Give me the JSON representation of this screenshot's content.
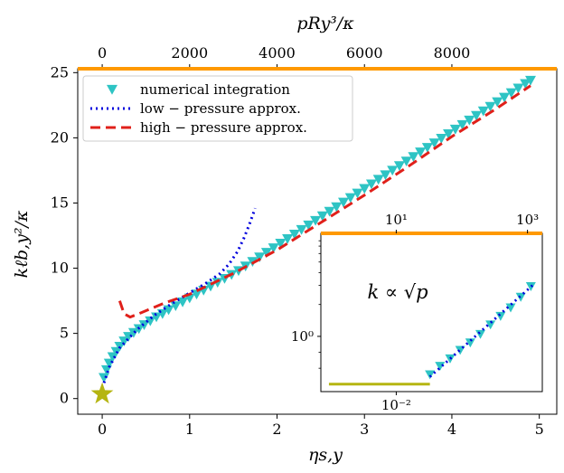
{
  "chart_data": [
    {
      "type": "scatter",
      "xlabel": "ηs,y",
      "ylabel": "kℓb,y²/κ",
      "top_xlabel": "pRy³/κ",
      "xlim": [
        -0.28,
        5.2
      ],
      "ylim": [
        -1.2,
        25.3
      ],
      "xticks": [
        "0",
        "1",
        "2",
        "3",
        "4",
        "5"
      ],
      "yticks": [
        "0",
        "5",
        "10",
        "15",
        "20",
        "25"
      ],
      "top_xticks": [
        "0",
        "2000",
        "4000",
        "6000",
        "8000"
      ],
      "top_x_values": [
        0,
        2000,
        4000,
        6000,
        8000
      ],
      "top_x_at_eta": [
        0.0,
        1.0,
        2.0,
        3.0,
        4.0
      ],
      "legend_position": "top-left",
      "grid": false,
      "highlight_line_color": "#ff9900",
      "star_color": "#b5b512",
      "star_point": {
        "x": 0.0,
        "y": 0.35
      },
      "series": [
        {
          "name": "numerical integration",
          "style": "marker-triangle-down",
          "color": "#2ec4c4",
          "points": [
            [
              0.02,
              1.6
            ],
            [
              0.05,
              2.2
            ],
            [
              0.08,
              2.7
            ],
            [
              0.12,
              3.2
            ],
            [
              0.16,
              3.6
            ],
            [
              0.2,
              4.0
            ],
            [
              0.25,
              4.4
            ],
            [
              0.3,
              4.75
            ],
            [
              0.36,
              5.05
            ],
            [
              0.42,
              5.35
            ],
            [
              0.48,
              5.65
            ],
            [
              0.55,
              5.95
            ],
            [
              0.62,
              6.25
            ],
            [
              0.69,
              6.5
            ],
            [
              0.76,
              6.8
            ],
            [
              0.84,
              7.1
            ],
            [
              0.92,
              7.4
            ],
            [
              1.0,
              7.7
            ],
            [
              1.08,
              8.0
            ],
            [
              1.16,
              8.3
            ],
            [
              1.24,
              8.6
            ],
            [
              1.32,
              8.9
            ],
            [
              1.4,
              9.2
            ],
            [
              1.48,
              9.5
            ],
            [
              1.56,
              9.8
            ],
            [
              1.64,
              10.15
            ],
            [
              1.72,
              10.5
            ],
            [
              1.8,
              10.85
            ],
            [
              1.88,
              11.2
            ],
            [
              1.96,
              11.55
            ],
            [
              2.04,
              11.9
            ],
            [
              2.12,
              12.25
            ],
            [
              2.2,
              12.6
            ],
            [
              2.28,
              12.95
            ],
            [
              2.36,
              13.3
            ],
            [
              2.44,
              13.65
            ],
            [
              2.52,
              14.0
            ],
            [
              2.6,
              14.35
            ],
            [
              2.68,
              14.7
            ],
            [
              2.76,
              15.05
            ],
            [
              2.84,
              15.4
            ],
            [
              2.92,
              15.75
            ],
            [
              3.0,
              16.1
            ],
            [
              3.08,
              16.45
            ],
            [
              3.16,
              16.8
            ],
            [
              3.24,
              17.15
            ],
            [
              3.32,
              17.5
            ],
            [
              3.4,
              17.85
            ],
            [
              3.48,
              18.2
            ],
            [
              3.56,
              18.55
            ],
            [
              3.64,
              18.9
            ],
            [
              3.72,
              19.25
            ],
            [
              3.8,
              19.6
            ],
            [
              3.88,
              19.95
            ],
            [
              3.96,
              20.3
            ],
            [
              4.04,
              20.65
            ],
            [
              4.12,
              21.0
            ],
            [
              4.2,
              21.35
            ],
            [
              4.28,
              21.7
            ],
            [
              4.36,
              22.05
            ],
            [
              4.44,
              22.4
            ],
            [
              4.52,
              22.75
            ],
            [
              4.6,
              23.1
            ],
            [
              4.68,
              23.45
            ],
            [
              4.76,
              23.8
            ],
            [
              4.84,
              24.15
            ],
            [
              4.9,
              24.4
            ]
          ]
        },
        {
          "name": "low − pressure approx.",
          "style": "dotted",
          "color": "#0000dd",
          "points": [
            [
              0.02,
              1.2
            ],
            [
              0.08,
              2.4
            ],
            [
              0.2,
              3.9
            ],
            [
              0.4,
              5.3
            ],
            [
              0.6,
              6.4
            ],
            [
              0.8,
              7.3
            ],
            [
              1.0,
              8.1
            ],
            [
              1.2,
              8.9
            ],
            [
              1.35,
              9.6
            ],
            [
              1.45,
              10.3
            ],
            [
              1.55,
              11.3
            ],
            [
              1.62,
              12.3
            ],
            [
              1.68,
              13.3
            ],
            [
              1.75,
              14.6
            ]
          ]
        },
        {
          "name": "high − pressure approx.",
          "style": "dashed",
          "color": "#e0201a",
          "points": [
            [
              0.2,
              7.5
            ],
            [
              0.25,
              6.5
            ],
            [
              0.32,
              6.25
            ],
            [
              0.45,
              6.6
            ],
            [
              0.7,
              7.3
            ],
            [
              1.0,
              8.0
            ],
            [
              1.5,
              9.6
            ],
            [
              2.0,
              11.4
            ],
            [
              2.5,
              13.5
            ],
            [
              3.0,
              15.6
            ],
            [
              3.5,
              17.8
            ],
            [
              4.0,
              20.1
            ],
            [
              4.5,
              22.2
            ],
            [
              4.9,
              24.0
            ]
          ]
        }
      ]
    },
    {
      "type": "scatter",
      "role": "inset",
      "annotation": "k ∝ √p",
      "x_scale": "log",
      "y_scale": "log",
      "top_xticks": [
        "10¹",
        "10³"
      ],
      "bottom_xticks": [
        "10⁻²"
      ],
      "yticks": [
        "10⁰"
      ],
      "xlim_log10": [
        -2.82,
        0.47
      ],
      "ylim_log10": [
        -0.52,
        0.97
      ],
      "highlight_line_color": "#ff9900",
      "segment_color": "#b5b512",
      "segment_log10": {
        "x": [
          -2.7,
          -1.2
        ],
        "y": -0.45
      },
      "series": [
        {
          "name": "numerical integration",
          "style": "marker-triangle-down",
          "color": "#2ec4c4",
          "points_log10": [
            [
              -1.2,
              -0.36
            ],
            [
              -1.05,
              -0.28
            ],
            [
              -0.9,
              -0.21
            ],
            [
              -0.75,
              -0.13
            ],
            [
              -0.6,
              -0.06
            ],
            [
              -0.45,
              0.02
            ],
            [
              -0.3,
              0.11
            ],
            [
              -0.15,
              0.19
            ],
            [
              0.0,
              0.27
            ],
            [
              0.15,
              0.37
            ],
            [
              0.3,
              0.47
            ]
          ]
        },
        {
          "name": "low − pressure approx.",
          "style": "dotted",
          "color": "#0000dd",
          "points_log10": [
            [
              -1.2,
              -0.38
            ],
            [
              0.36,
              0.5
            ]
          ]
        }
      ]
    }
  ],
  "legend": {
    "entries": [
      {
        "label": "numerical integration",
        "color": "#2ec4c4",
        "style": "marker"
      },
      {
        "label": "low − pressure approx.",
        "color": "#0000dd",
        "style": "dotted"
      },
      {
        "label": "high − pressure approx.",
        "color": "#e0201a",
        "style": "dashed"
      }
    ]
  }
}
